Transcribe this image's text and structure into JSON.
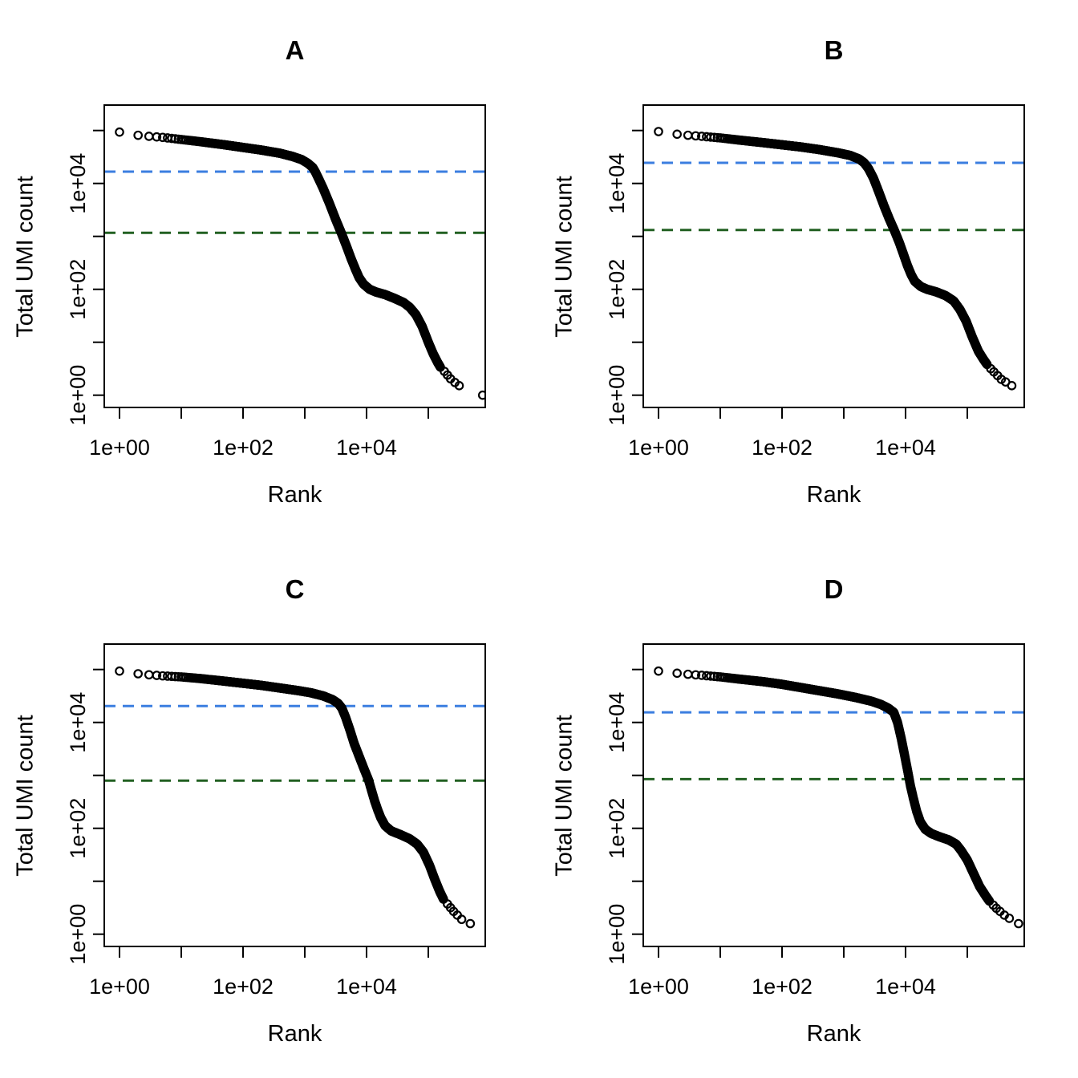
{
  "figure": {
    "background": "#ffffff",
    "rows": 2,
    "cols": 2
  },
  "style": {
    "point_color": "#000000",
    "axis_color": "#000000",
    "knee_color": "#3b7ee0",
    "inflection_color": "#226022",
    "dash_pattern": "14 9"
  },
  "chart_data": [
    {
      "type": "scatter",
      "title": "A",
      "xlabel": "Rank",
      "ylabel": "Total UMI count",
      "x_scale": "log10",
      "y_scale": "log10",
      "grid": false,
      "legend": "none",
      "xlim_log": [
        -0.25,
        5.92
      ],
      "ylim_log": [
        -0.23,
        5.48
      ],
      "x_tick_labels": [
        {
          "label": "1e+00",
          "log": 0
        },
        {
          "label": "1e+02",
          "log": 2
        },
        {
          "label": "1e+04",
          "log": 4
        }
      ],
      "x_minor_tick_logs": [
        1,
        3,
        5
      ],
      "y_tick_labels": [
        {
          "label": "1e+00",
          "log": 0
        },
        {
          "label": "1e+02",
          "log": 2
        },
        {
          "label": "1e+04",
          "log": 4
        }
      ],
      "y_minor_tick_logs": [
        1,
        3,
        5
      ],
      "knee": 16700,
      "inflection": 1170,
      "curve_log10": [
        [
          0,
          4.97
        ],
        [
          0.3,
          4.91
        ],
        [
          0.48,
          4.89
        ],
        [
          0.7,
          4.87
        ],
        [
          1.0,
          4.83
        ],
        [
          1.3,
          4.79
        ],
        [
          1.7,
          4.73
        ],
        [
          2.0,
          4.68
        ],
        [
          2.3,
          4.63
        ],
        [
          2.6,
          4.57
        ],
        [
          2.8,
          4.51
        ],
        [
          2.95,
          4.45
        ],
        [
          3.05,
          4.38
        ],
        [
          3.13,
          4.3
        ],
        [
          3.17,
          4.22
        ],
        [
          3.22,
          4.1
        ],
        [
          3.3,
          3.9
        ],
        [
          3.4,
          3.62
        ],
        [
          3.5,
          3.32
        ],
        [
          3.6,
          3.04
        ],
        [
          3.68,
          2.8
        ],
        [
          3.75,
          2.58
        ],
        [
          3.82,
          2.38
        ],
        [
          3.88,
          2.22
        ],
        [
          3.95,
          2.1
        ],
        [
          4.05,
          2.0
        ],
        [
          4.15,
          1.95
        ],
        [
          4.3,
          1.9
        ],
        [
          4.45,
          1.83
        ],
        [
          4.6,
          1.75
        ],
        [
          4.7,
          1.66
        ],
        [
          4.8,
          1.52
        ],
        [
          4.9,
          1.3
        ],
        [
          5.0,
          1.0
        ],
        [
          5.08,
          0.78
        ],
        [
          5.15,
          0.62
        ],
        [
          5.2,
          0.52
        ]
      ],
      "tail_points_log10": [
        [
          5.26,
          0.45
        ],
        [
          5.31,
          0.38
        ],
        [
          5.36,
          0.31
        ],
        [
          5.43,
          0.24
        ],
        [
          5.5,
          0.18
        ],
        [
          5.88,
          0.0
        ]
      ]
    },
    {
      "type": "scatter",
      "title": "B",
      "xlabel": "Rank",
      "ylabel": "Total UMI count",
      "x_scale": "log10",
      "y_scale": "log10",
      "grid": false,
      "legend": "none",
      "xlim_log": [
        -0.25,
        5.92
      ],
      "ylim_log": [
        -0.23,
        5.48
      ],
      "x_tick_labels": [
        {
          "label": "1e+00",
          "log": 0
        },
        {
          "label": "1e+02",
          "log": 2
        },
        {
          "label": "1e+04",
          "log": 4
        }
      ],
      "x_minor_tick_logs": [
        1,
        3,
        5
      ],
      "y_tick_labels": [
        {
          "label": "1e+00",
          "log": 0
        },
        {
          "label": "1e+02",
          "log": 2
        },
        {
          "label": "1e+04",
          "log": 4
        }
      ],
      "y_minor_tick_logs": [
        1,
        3,
        5
      ],
      "knee": 24500,
      "inflection": 1320,
      "curve_log10": [
        [
          0,
          4.98
        ],
        [
          0.3,
          4.93
        ],
        [
          0.48,
          4.91
        ],
        [
          0.7,
          4.89
        ],
        [
          1.0,
          4.86
        ],
        [
          1.3,
          4.82
        ],
        [
          1.7,
          4.77
        ],
        [
          2.0,
          4.73
        ],
        [
          2.3,
          4.69
        ],
        [
          2.6,
          4.64
        ],
        [
          2.9,
          4.58
        ],
        [
          3.1,
          4.53
        ],
        [
          3.25,
          4.46
        ],
        [
          3.33,
          4.39
        ],
        [
          3.4,
          4.28
        ],
        [
          3.48,
          4.1
        ],
        [
          3.56,
          3.86
        ],
        [
          3.65,
          3.58
        ],
        [
          3.74,
          3.32
        ],
        [
          3.82,
          3.11
        ],
        [
          3.9,
          2.88
        ],
        [
          3.97,
          2.65
        ],
        [
          4.03,
          2.45
        ],
        [
          4.09,
          2.28
        ],
        [
          4.15,
          2.15
        ],
        [
          4.25,
          2.05
        ],
        [
          4.35,
          2.0
        ],
        [
          4.5,
          1.95
        ],
        [
          4.65,
          1.88
        ],
        [
          4.78,
          1.78
        ],
        [
          4.88,
          1.62
        ],
        [
          4.98,
          1.4
        ],
        [
          5.08,
          1.1
        ],
        [
          5.18,
          0.83
        ],
        [
          5.26,
          0.68
        ],
        [
          5.32,
          0.58
        ]
      ],
      "tail_points_log10": [
        [
          5.38,
          0.5
        ],
        [
          5.43,
          0.44
        ],
        [
          5.49,
          0.37
        ],
        [
          5.55,
          0.3
        ],
        [
          5.62,
          0.25
        ],
        [
          5.72,
          0.18
        ]
      ]
    },
    {
      "type": "scatter",
      "title": "C",
      "xlabel": "Rank",
      "ylabel": "Total UMI count",
      "x_scale": "log10",
      "y_scale": "log10",
      "grid": false,
      "legend": "none",
      "xlim_log": [
        -0.25,
        5.92
      ],
      "ylim_log": [
        -0.23,
        5.48
      ],
      "x_tick_labels": [
        {
          "label": "1e+00",
          "log": 0
        },
        {
          "label": "1e+02",
          "log": 2
        },
        {
          "label": "1e+04",
          "log": 4
        }
      ],
      "x_minor_tick_logs": [
        1,
        3,
        5
      ],
      "y_tick_labels": [
        {
          "label": "1e+00",
          "log": 0
        },
        {
          "label": "1e+02",
          "log": 2
        },
        {
          "label": "1e+04",
          "log": 4
        }
      ],
      "y_minor_tick_logs": [
        1,
        3,
        5
      ],
      "knee": 20400,
      "inflection": 795,
      "curve_log10": [
        [
          0,
          4.97
        ],
        [
          0.3,
          4.92
        ],
        [
          0.48,
          4.9
        ],
        [
          0.7,
          4.88
        ],
        [
          1.0,
          4.86
        ],
        [
          1.3,
          4.83
        ],
        [
          1.7,
          4.78
        ],
        [
          2.0,
          4.74
        ],
        [
          2.3,
          4.7
        ],
        [
          2.6,
          4.65
        ],
        [
          2.9,
          4.6
        ],
        [
          3.1,
          4.56
        ],
        [
          3.3,
          4.5
        ],
        [
          3.45,
          4.43
        ],
        [
          3.54,
          4.36
        ],
        [
          3.6,
          4.27
        ],
        [
          3.66,
          4.1
        ],
        [
          3.73,
          3.86
        ],
        [
          3.8,
          3.6
        ],
        [
          3.88,
          3.36
        ],
        [
          3.96,
          3.12
        ],
        [
          4.03,
          2.92
        ],
        [
          4.08,
          2.72
        ],
        [
          4.13,
          2.52
        ],
        [
          4.18,
          2.35
        ],
        [
          4.23,
          2.2
        ],
        [
          4.3,
          2.05
        ],
        [
          4.4,
          1.95
        ],
        [
          4.55,
          1.88
        ],
        [
          4.7,
          1.8
        ],
        [
          4.82,
          1.7
        ],
        [
          4.92,
          1.55
        ],
        [
          5.02,
          1.3
        ],
        [
          5.1,
          1.05
        ],
        [
          5.18,
          0.82
        ],
        [
          5.25,
          0.65
        ]
      ],
      "tail_points_log10": [
        [
          5.31,
          0.57
        ],
        [
          5.36,
          0.5
        ],
        [
          5.41,
          0.43
        ],
        [
          5.47,
          0.36
        ],
        [
          5.54,
          0.28
        ],
        [
          5.68,
          0.2
        ]
      ]
    },
    {
      "type": "scatter",
      "title": "D",
      "xlabel": "Rank",
      "ylabel": "Total UMI count",
      "x_scale": "log10",
      "y_scale": "log10",
      "grid": false,
      "legend": "none",
      "xlim_log": [
        -0.25,
        5.92
      ],
      "ylim_log": [
        -0.23,
        5.48
      ],
      "x_tick_labels": [
        {
          "label": "1e+00",
          "log": 0
        },
        {
          "label": "1e+02",
          "log": 2
        },
        {
          "label": "1e+04",
          "log": 4
        }
      ],
      "x_minor_tick_logs": [
        1,
        3,
        5
      ],
      "y_tick_labels": [
        {
          "label": "1e+00",
          "log": 0
        },
        {
          "label": "1e+02",
          "log": 2
        },
        {
          "label": "1e+04",
          "log": 4
        }
      ],
      "y_minor_tick_logs": [
        1,
        3,
        5
      ],
      "knee": 15500,
      "inflection": 850,
      "curve_log10": [
        [
          0,
          4.97
        ],
        [
          0.3,
          4.93
        ],
        [
          0.48,
          4.91
        ],
        [
          0.7,
          4.89
        ],
        [
          1.0,
          4.86
        ],
        [
          1.3,
          4.82
        ],
        [
          1.7,
          4.77
        ],
        [
          2.0,
          4.72
        ],
        [
          2.3,
          4.66
        ],
        [
          2.6,
          4.6
        ],
        [
          2.9,
          4.54
        ],
        [
          3.2,
          4.47
        ],
        [
          3.45,
          4.4
        ],
        [
          3.6,
          4.34
        ],
        [
          3.72,
          4.27
        ],
        [
          3.81,
          4.19
        ],
        [
          3.87,
          4.0
        ],
        [
          3.93,
          3.7
        ],
        [
          3.99,
          3.35
        ],
        [
          4.04,
          3.05
        ],
        [
          4.08,
          2.8
        ],
        [
          4.13,
          2.55
        ],
        [
          4.18,
          2.32
        ],
        [
          4.24,
          2.12
        ],
        [
          4.32,
          1.98
        ],
        [
          4.42,
          1.9
        ],
        [
          4.55,
          1.84
        ],
        [
          4.7,
          1.78
        ],
        [
          4.82,
          1.7
        ],
        [
          4.9,
          1.58
        ],
        [
          5.0,
          1.4
        ],
        [
          5.1,
          1.15
        ],
        [
          5.2,
          0.9
        ],
        [
          5.3,
          0.72
        ],
        [
          5.36,
          0.62
        ]
      ],
      "tail_points_log10": [
        [
          5.42,
          0.55
        ],
        [
          5.47,
          0.49
        ],
        [
          5.53,
          0.43
        ],
        [
          5.6,
          0.36
        ],
        [
          5.68,
          0.3
        ],
        [
          5.83,
          0.2
        ]
      ]
    }
  ]
}
